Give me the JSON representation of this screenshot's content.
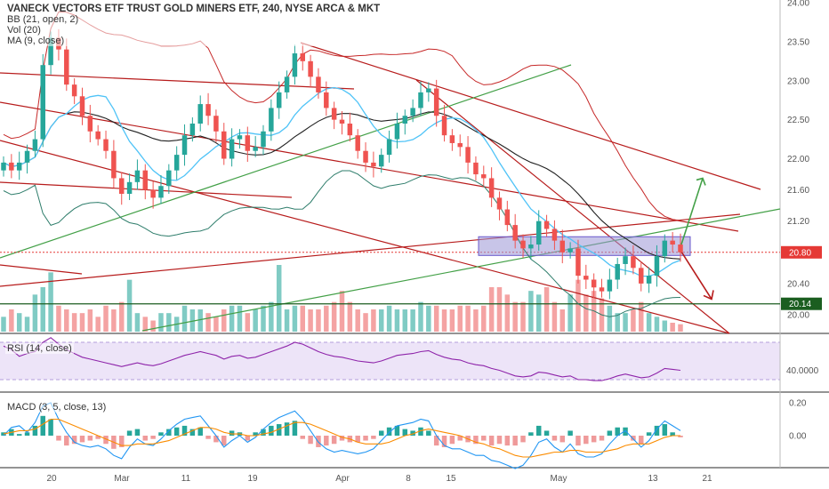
{
  "header": {
    "title": "VANECK VECTORS ETF TRUST GOLD MINERS ETF, 240, NYSE ARCA & MKT",
    "indicators": [
      "BB (21, open, 2)",
      "Vol (20)",
      "MA (9, close)"
    ]
  },
  "rsi_panel": {
    "label": "RSI (14, close)"
  },
  "macd_panel": {
    "label": "MACD (3, 5, close, 13)"
  },
  "colors": {
    "up": "#26a69a",
    "down": "#ef5350",
    "up_vol": "#80cbc4",
    "down_vol": "#f4a3a3",
    "bb": "#c62828",
    "ma": "#4fc3f7",
    "trend_red": "#b71c1c",
    "trend_green": "#43a047",
    "zone": "#9a96d6",
    "rsi": "#8e24aa",
    "rsi_band": "#ede4f8"
  },
  "chart_data": [
    {
      "type": "candlestick",
      "title": "VANECK VECTORS ETF TRUST GOLD MINERS ETF, 240, NYSE ARCA & MKT",
      "x_ticks": [
        "20",
        "Mar",
        "11",
        "19",
        "Apr",
        "8",
        "15",
        "May",
        "13",
        "21"
      ],
      "y_ticks": [
        24.0,
        23.5,
        23.0,
        22.5,
        22.0,
        21.6,
        21.2,
        20.8,
        20.4,
        20.14,
        20.0
      ],
      "ylim": [
        19.98,
        24.02
      ],
      "grid": false,
      "price_tags": [
        {
          "value": 20.8,
          "label": "20.80"
        },
        {
          "value": 20.14,
          "label": "20.14"
        }
      ],
      "series": [
        {
          "name": "close",
          "values": [
            21.95,
            21.85,
            21.95,
            22.1,
            22.25,
            23.2,
            23.55,
            23.4,
            22.95,
            22.8,
            22.55,
            22.35,
            22.25,
            22.1,
            21.75,
            21.55,
            21.7,
            21.85,
            21.6,
            21.5,
            21.65,
            21.85,
            22.05,
            22.3,
            22.45,
            22.7,
            22.55,
            22.35,
            22.0,
            22.25,
            22.3,
            22.1,
            22.15,
            22.35,
            22.65,
            22.85,
            23.05,
            23.35,
            23.25,
            23.05,
            22.85,
            22.65,
            22.5,
            22.45,
            22.3,
            22.1,
            21.95,
            21.9,
            22.05,
            22.25,
            22.45,
            22.55,
            22.65,
            22.85,
            22.9,
            22.55,
            22.3,
            22.2,
            22.15,
            21.95,
            21.8,
            21.75,
            21.5,
            21.35,
            21.15,
            20.95,
            20.85,
            20.9,
            21.2,
            21.1,
            20.95,
            20.8,
            20.85,
            20.5,
            20.45,
            20.35,
            20.3,
            20.45,
            20.65,
            20.75,
            20.6,
            20.4,
            20.5,
            20.75,
            20.95,
            20.9,
            20.8
          ]
        }
      ],
      "markers": {
        "arrow_up_target": 21.75,
        "arrow_down_target": 20.2,
        "zone_range": [
          20.76,
          21.0
        ]
      }
    },
    {
      "type": "bar",
      "title": "Vol (20)",
      "grid": false,
      "values": [
        2,
        3,
        2.5,
        2,
        5,
        6,
        8,
        3.5,
        3,
        2.5,
        2.5,
        3,
        2,
        3.5,
        3,
        4,
        7,
        2.5,
        2,
        1.5,
        2.5,
        2.5,
        2,
        3.5,
        3,
        3,
        2.5,
        2,
        3,
        3.5,
        3.5,
        2.5,
        3,
        3.5,
        4,
        9,
        3,
        3.5,
        3.5,
        3,
        3,
        3.5,
        4,
        5.5,
        4,
        3,
        2.5,
        3,
        3,
        3.5,
        3,
        3,
        3,
        4,
        3.5,
        3.5,
        3,
        3,
        3.5,
        3.5,
        3,
        3.5,
        6,
        6,
        5,
        4,
        4,
        5.5,
        5,
        6,
        4,
        3,
        5,
        7,
        5,
        5.5,
        4.5,
        3.5,
        2.5,
        2.5,
        3,
        4,
        2.5,
        2,
        1.5,
        1.2,
        1
      ]
    },
    {
      "type": "line",
      "title": "RSI (14, close)",
      "y_ticks": [
        40.0
      ],
      "y_tick_labels": [
        "40.0000"
      ],
      "ylim": [
        20,
        80
      ],
      "bands": [
        30,
        70
      ],
      "grid": false,
      "series": [
        {
          "name": "RSI (14, close)",
          "values": [
            66,
            62,
            55,
            58,
            60,
            70,
            75,
            68,
            62,
            58,
            54,
            52,
            50,
            48,
            46,
            44,
            46,
            48,
            46,
            45,
            47,
            50,
            53,
            56,
            58,
            60,
            58,
            56,
            52,
            55,
            56,
            53,
            54,
            57,
            60,
            63,
            66,
            70,
            68,
            64,
            60,
            57,
            55,
            54,
            52,
            50,
            49,
            48,
            50,
            53,
            56,
            57,
            58,
            60,
            61,
            57,
            54,
            52,
            51,
            48,
            46,
            45,
            42,
            40,
            37,
            34,
            33,
            34,
            38,
            37,
            35,
            33,
            34,
            30,
            30,
            29,
            29,
            31,
            34,
            36,
            34,
            32,
            33,
            37,
            42,
            41,
            40
          ]
        }
      ]
    },
    {
      "type": "bar",
      "title": "MACD (3, 5, close, 13)",
      "y_ticks": [
        0.2,
        0.0
      ],
      "y_tick_labels": [
        "0.20",
        "0.00"
      ],
      "ylim": [
        -0.25,
        0.25
      ],
      "grid": false,
      "series": [
        {
          "name": "histogram",
          "values": [
            0.02,
            0.04,
            0.01,
            0.02,
            0.06,
            0.12,
            0.1,
            -0.03,
            -0.06,
            -0.05,
            -0.04,
            -0.03,
            -0.02,
            -0.05,
            -0.08,
            -0.07,
            0.03,
            0.04,
            -0.03,
            -0.02,
            0.02,
            0.04,
            0.05,
            0.06,
            0.04,
            0.05,
            -0.02,
            -0.04,
            -0.06,
            0.03,
            0.02,
            -0.03,
            0.02,
            0.04,
            0.06,
            0.07,
            0.08,
            0.09,
            -0.02,
            -0.05,
            -0.07,
            -0.06,
            -0.05,
            -0.03,
            -0.04,
            -0.04,
            -0.03,
            -0.02,
            0.03,
            0.05,
            0.06,
            0.04,
            0.03,
            0.05,
            0.03,
            -0.06,
            -0.07,
            -0.05,
            -0.03,
            -0.04,
            -0.05,
            -0.03,
            -0.06,
            -0.05,
            -0.06,
            -0.06,
            -0.04,
            0.02,
            0.06,
            0.03,
            -0.03,
            -0.04,
            0.03,
            -0.06,
            -0.05,
            -0.04,
            -0.03,
            0.03,
            0.05,
            0.05,
            -0.03,
            -0.05,
            0.02,
            0.06,
            0.07,
            0.02,
            -0.01
          ]
        },
        {
          "name": "macd",
          "values": [
            0.0,
            0.05,
            0.06,
            0.02,
            0.08,
            0.18,
            0.2,
            0.1,
            0.02,
            -0.04,
            -0.06,
            -0.07,
            -0.06,
            -0.08,
            -0.12,
            -0.14,
            -0.07,
            -0.02,
            -0.05,
            -0.06,
            -0.02,
            0.03,
            0.07,
            0.1,
            0.11,
            0.12,
            0.06,
            0.0,
            -0.07,
            -0.03,
            0.0,
            -0.04,
            -0.01,
            0.04,
            0.08,
            0.11,
            0.13,
            0.15,
            0.1,
            0.03,
            -0.04,
            -0.08,
            -0.1,
            -0.09,
            -0.1,
            -0.11,
            -0.1,
            -0.08,
            -0.03,
            0.02,
            0.06,
            0.07,
            0.08,
            0.1,
            0.09,
            0.0,
            -0.06,
            -0.08,
            -0.08,
            -0.1,
            -0.12,
            -0.12,
            -0.15,
            -0.16,
            -0.18,
            -0.2,
            -0.18,
            -0.12,
            -0.04,
            -0.02,
            -0.07,
            -0.1,
            -0.05,
            -0.11,
            -0.13,
            -0.13,
            -0.11,
            -0.05,
            0.0,
            0.03,
            -0.02,
            -0.07,
            -0.03,
            0.04,
            0.09,
            0.06,
            0.03
          ]
        },
        {
          "name": "signal",
          "values": [
            0.01,
            0.02,
            0.03,
            0.03,
            0.04,
            0.07,
            0.1,
            0.1,
            0.08,
            0.06,
            0.04,
            0.02,
            0.0,
            -0.02,
            -0.04,
            -0.06,
            -0.06,
            -0.05,
            -0.05,
            -0.05,
            -0.04,
            -0.03,
            -0.01,
            0.01,
            0.03,
            0.05,
            0.05,
            0.04,
            0.02,
            0.01,
            0.01,
            0.0,
            0.0,
            0.01,
            0.02,
            0.04,
            0.06,
            0.08,
            0.08,
            0.07,
            0.05,
            0.03,
            0.01,
            -0.01,
            -0.02,
            -0.04,
            -0.05,
            -0.05,
            -0.05,
            -0.04,
            -0.02,
            0.0,
            0.01,
            0.03,
            0.04,
            0.03,
            0.02,
            0.01,
            0.0,
            -0.02,
            -0.04,
            -0.05,
            -0.07,
            -0.08,
            -0.1,
            -0.12,
            -0.13,
            -0.13,
            -0.12,
            -0.11,
            -0.1,
            -0.1,
            -0.09,
            -0.09,
            -0.1,
            -0.1,
            -0.1,
            -0.09,
            -0.08,
            -0.06,
            -0.05,
            -0.05,
            -0.05,
            -0.03,
            -0.01,
            0.0,
            0.0
          ]
        }
      ]
    }
  ]
}
